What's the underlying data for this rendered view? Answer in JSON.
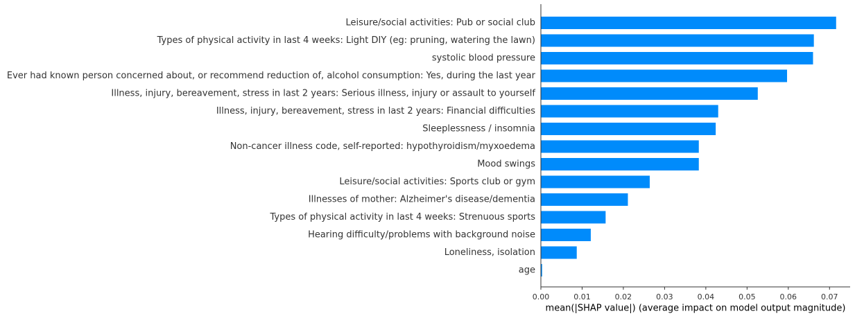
{
  "chart_data": {
    "type": "bar",
    "orientation": "horizontal",
    "categories": [
      "Leisure/social activities: Pub or social club",
      "Types of physical activity in last 4 weeks: Light DIY (eg: pruning, watering the lawn)",
      "systolic blood pressure",
      "Ever had known person concerned about, or recommend reduction of, alcohol consumption: Yes, during the last year",
      "Illness, injury, bereavement, stress in last 2 years: Serious illness, injury or assault to yourself",
      "Illness, injury, bereavement, stress in last 2 years: Financial difficulties",
      "Sleeplessness / insomnia",
      "Non-cancer illness code, self-reported: hypothyroidism/myxoedema",
      "Mood swings",
      "Leisure/social activities: Sports club or gym",
      "Illnesses of mother: Alzheimer's disease/dementia",
      "Types of physical activity in last 4 weeks: Strenuous sports",
      "Hearing difficulty/problems with background noise",
      "Loneliness, isolation",
      "age"
    ],
    "values": [
      0.0716,
      0.0662,
      0.066,
      0.0597,
      0.0526,
      0.043,
      0.0424,
      0.0383,
      0.0383,
      0.0264,
      0.0211,
      0.0157,
      0.0121,
      0.0087,
      0.0003
    ],
    "xlabel": "mean(|SHAP value|) (average impact on model output magnitude)",
    "ylabel": "",
    "title": "",
    "xlim": [
      0,
      0.075
    ],
    "xticks": [
      0.0,
      0.01,
      0.02,
      0.03,
      0.04,
      0.05,
      0.06,
      0.07
    ],
    "xtick_labels": [
      "0.00",
      "0.01",
      "0.02",
      "0.03",
      "0.04",
      "0.05",
      "0.06",
      "0.07"
    ],
    "bar_color": "#008bfb",
    "grid": false,
    "legend": "none"
  }
}
